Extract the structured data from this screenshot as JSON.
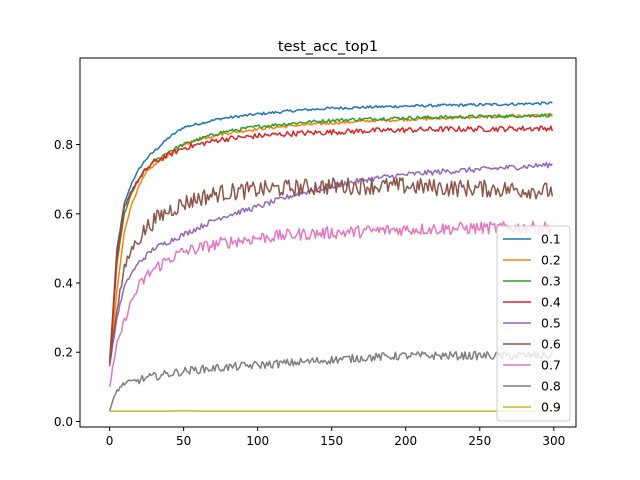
{
  "chart_data": {
    "type": "line",
    "title": "test_acc_top1",
    "xlabel": "",
    "ylabel": "",
    "xlim": [
      -20,
      315
    ],
    "ylim": [
      -0.016,
      1.05
    ],
    "xticks": [
      0,
      50,
      100,
      150,
      200,
      250,
      300
    ],
    "yticks": [
      0.0,
      0.2,
      0.4,
      0.6,
      0.8
    ],
    "ytick_labels": [
      "0.0",
      "0.2",
      "0.4",
      "0.6",
      "0.8"
    ],
    "grid": false,
    "legend_position": "lower right",
    "x": [
      0,
      5,
      10,
      15,
      20,
      25,
      30,
      40,
      50,
      60,
      75,
      100,
      125,
      150,
      175,
      200,
      225,
      250,
      275,
      299
    ],
    "series": [
      {
        "name": "0.1",
        "color": "#1f77b4",
        "noise": 0.004,
        "values": [
          0.17,
          0.5,
          0.63,
          0.69,
          0.73,
          0.76,
          0.78,
          0.82,
          0.85,
          0.86,
          0.875,
          0.888,
          0.898,
          0.905,
          0.908,
          0.911,
          0.913,
          0.915,
          0.917,
          0.92
        ]
      },
      {
        "name": "0.2",
        "color": "#ff7f0e",
        "noise": 0.004,
        "values": [
          0.16,
          0.38,
          0.55,
          0.63,
          0.68,
          0.72,
          0.74,
          0.77,
          0.8,
          0.815,
          0.83,
          0.845,
          0.855,
          0.862,
          0.868,
          0.872,
          0.876,
          0.879,
          0.882,
          0.884
        ]
      },
      {
        "name": "0.3",
        "color": "#2ca02c",
        "noise": 0.005,
        "values": [
          0.17,
          0.46,
          0.6,
          0.66,
          0.7,
          0.73,
          0.75,
          0.78,
          0.8,
          0.815,
          0.835,
          0.852,
          0.862,
          0.87,
          0.874,
          0.877,
          0.879,
          0.881,
          0.883,
          0.885
        ]
      },
      {
        "name": "0.4",
        "color": "#d62728",
        "noise": 0.008,
        "values": [
          0.16,
          0.48,
          0.62,
          0.67,
          0.7,
          0.73,
          0.75,
          0.77,
          0.79,
          0.8,
          0.815,
          0.825,
          0.832,
          0.836,
          0.84,
          0.842,
          0.844,
          0.845,
          0.846,
          0.847
        ]
      },
      {
        "name": "0.5",
        "color": "#9467bd",
        "noise": 0.008,
        "values": [
          0.16,
          0.3,
          0.39,
          0.43,
          0.46,
          0.48,
          0.5,
          0.52,
          0.54,
          0.56,
          0.59,
          0.62,
          0.655,
          0.68,
          0.7,
          0.713,
          0.722,
          0.728,
          0.735,
          0.742
        ]
      },
      {
        "name": "0.6",
        "color": "#8c564b",
        "noise": 0.025,
        "values": [
          0.17,
          0.33,
          0.44,
          0.5,
          0.53,
          0.56,
          0.58,
          0.61,
          0.63,
          0.645,
          0.66,
          0.67,
          0.675,
          0.68,
          0.68,
          0.68,
          0.675,
          0.673,
          0.67,
          0.665
        ]
      },
      {
        "name": "0.7",
        "color": "#e377c2",
        "noise": 0.018,
        "values": [
          0.1,
          0.22,
          0.29,
          0.35,
          0.39,
          0.42,
          0.44,
          0.47,
          0.49,
          0.5,
          0.515,
          0.53,
          0.54,
          0.545,
          0.55,
          0.555,
          0.557,
          0.559,
          0.56,
          0.56
        ]
      },
      {
        "name": "0.8",
        "color": "#7f7f7f",
        "noise": 0.012,
        "values": [
          0.03,
          0.09,
          0.11,
          0.115,
          0.12,
          0.125,
          0.13,
          0.138,
          0.145,
          0.15,
          0.155,
          0.163,
          0.17,
          0.178,
          0.185,
          0.19,
          0.19,
          0.19,
          0.19,
          0.19
        ]
      },
      {
        "name": "0.9",
        "color": "#bcbd22",
        "noise": 0.0,
        "values": [
          0.03,
          0.03,
          0.03,
          0.03,
          0.03,
          0.03,
          0.03,
          0.03,
          0.031,
          0.03,
          0.03,
          0.03,
          0.03,
          0.03,
          0.03,
          0.03,
          0.03,
          0.03,
          0.03,
          0.03
        ]
      }
    ]
  }
}
